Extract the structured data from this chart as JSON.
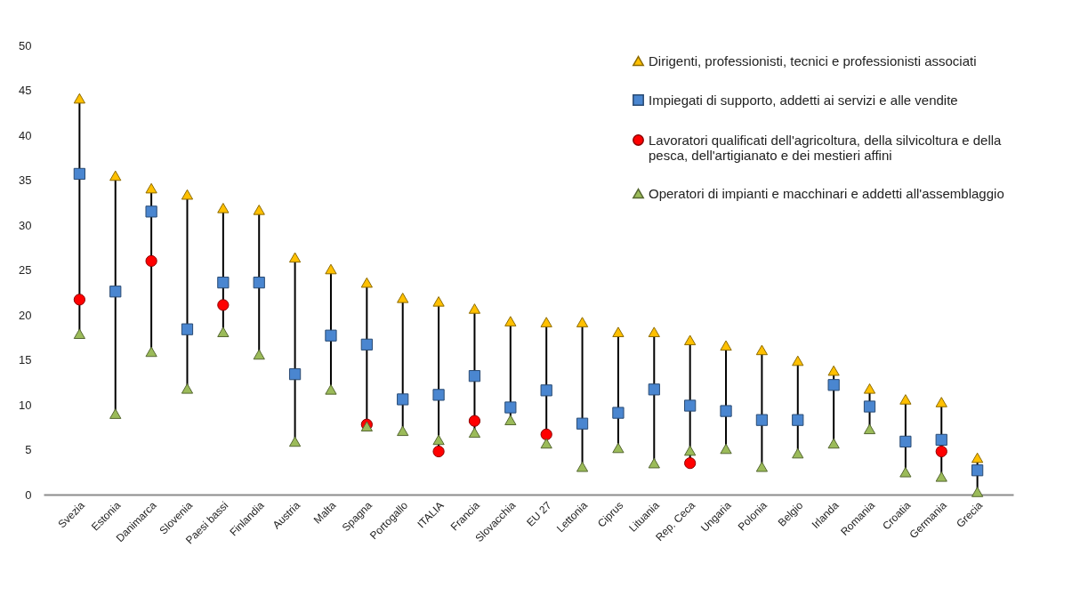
{
  "chart_data": {
    "type": "scatter",
    "categories": [
      "Svezia",
      "Estonia",
      "Danimarca",
      "Slovenia",
      "Paesi bassi",
      "Finlandia",
      "Austria",
      "Malta",
      "Spagna",
      "Portogallo",
      "ITALIA",
      "Francia",
      "Slovacchia",
      "EU 27",
      "Lettonia",
      "Ciprus",
      "Lituania",
      "Rep. Ceca",
      "Ungaria",
      "Polonia",
      "Belgio",
      "Irlanda",
      "Romania",
      "Croatia",
      "Germania",
      "Grecia"
    ],
    "series": [
      {
        "name": "Dirigenti, professionisti, tecnici e professionisti associati",
        "color": "#ffc000",
        "marker": "triangle",
        "values": [
          44.1,
          35.5,
          34.1,
          33.4,
          31.9,
          31.7,
          26.4,
          25.1,
          23.6,
          21.9,
          21.5,
          20.7,
          19.3,
          19.2,
          19.2,
          18.1,
          18.1,
          17.2,
          16.6,
          16.1,
          14.9,
          13.8,
          11.8,
          10.6,
          10.3,
          4.1
        ]
      },
      {
        "name": "Impiegati di supporto, addetti ai servizi e alle vendite",
        "color": "#4a86d0",
        "marker": "square",
        "values": [
          35.7,
          22.6,
          31.5,
          18.4,
          23.6,
          23.6,
          13.4,
          17.7,
          16.7,
          10.6,
          11.1,
          13.2,
          9.7,
          11.6,
          7.9,
          9.1,
          11.7,
          9.9,
          9.3,
          8.3,
          8.3,
          12.2,
          9.8,
          5.9,
          6.1,
          2.7
        ]
      },
      {
        "name": "Lavoratori qualificati dell'agricoltura, della silvicoltura e della pesca, dell'artigianato e dei mestieri affini",
        "color": "#ff0000",
        "marker": "circle",
        "values": [
          21.7,
          null,
          26.0,
          null,
          21.1,
          null,
          null,
          null,
          7.8,
          null,
          4.8,
          8.2,
          null,
          6.7,
          null,
          null,
          null,
          3.5,
          null,
          null,
          null,
          null,
          null,
          null,
          4.8,
          null
        ]
      },
      {
        "name": "Operatori di impianti e macchinari e addetti all'assemblaggio",
        "color": "#9bbb59",
        "marker": "triangle",
        "values": [
          17.9,
          9.0,
          15.9,
          11.8,
          18.1,
          15.6,
          5.9,
          11.7,
          7.6,
          7.1,
          6.1,
          6.9,
          8.3,
          5.7,
          3.1,
          5.2,
          3.5,
          4.9,
          5.1,
          3.1,
          4.6,
          5.7,
          7.3,
          2.5,
          2.0,
          0.3
        ]
      }
    ],
    "ylim": [
      0,
      50
    ],
    "yticks": [
      0,
      5,
      10,
      15,
      20,
      25,
      30,
      35,
      40,
      45,
      50
    ],
    "grid": false,
    "legend": "top right"
  }
}
